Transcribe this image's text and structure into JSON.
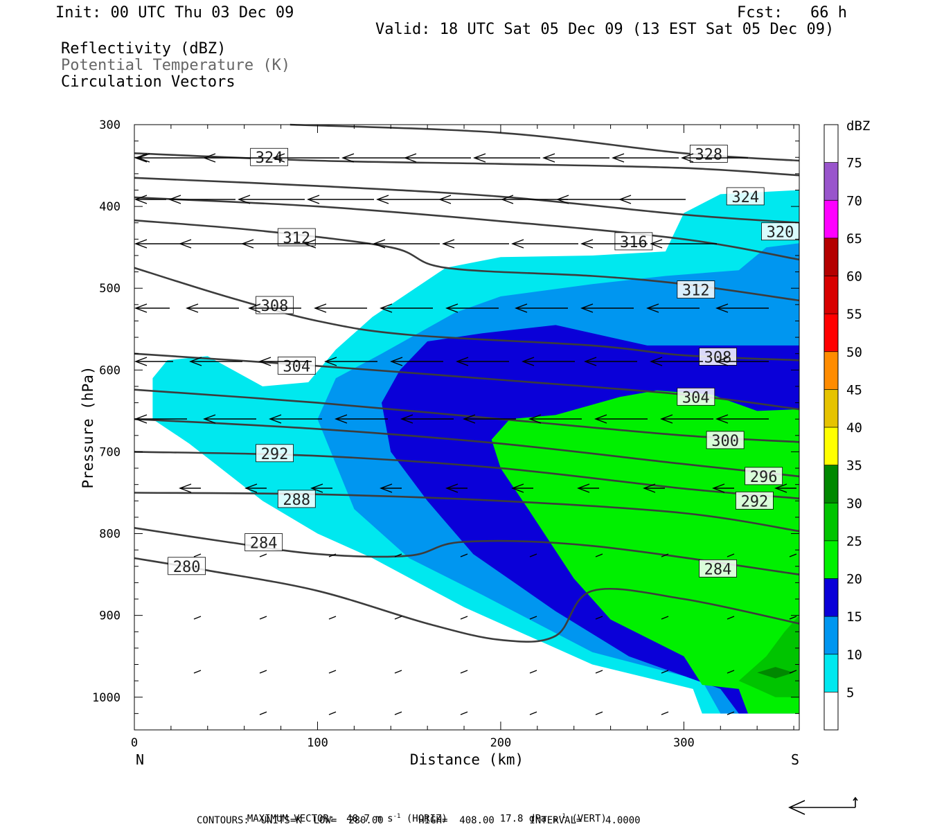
{
  "header": {
    "init": "Init: 00 UTC Thu 03 Dec 09",
    "fcst": "Fcst:   66 h",
    "valid": "Valid: 18 UTC Sat 05 Dec 09 (13 EST Sat 05 Dec 09)",
    "field1": "Reflectivity (dBZ)",
    "field2": "Potential Temperature (K)",
    "field3": "Circulation Vectors"
  },
  "footer": {
    "maxvec_label": "MAXIMUM VECTOR:",
    "maxvec_h": "48.7 m s",
    "maxvec_h_unit": "(HORIZ)",
    "maxvec_v": "17.8 dPa s",
    "maxvec_v_unit": "(VERT)",
    "exp": "-1",
    "contours": "CONTOURS:  UNITS=K  LOW=  280.00      HIGH=  408.00      INTERVAL=    4.0000"
  },
  "colors": {
    "c5": "#00e8ef",
    "c10": "#0096f0",
    "c15": "#0a00d8",
    "c20": "#00f000",
    "c25": "#00c400",
    "c30": "#008800",
    "contour": "#3c3c3c"
  },
  "chart_data": {
    "type": "heatmap",
    "xlabel": "Distance (km)",
    "ylabel": "Pressure (hPa)",
    "xlim": [
      0,
      363
    ],
    "ylim": [
      1040,
      300
    ],
    "x_ticks": [
      0,
      100,
      200,
      300
    ],
    "y_ticks": [
      300,
      400,
      500,
      600,
      700,
      800,
      900,
      1000
    ],
    "x_end_labels": {
      "left": "N",
      "right": "S"
    },
    "colorbar": {
      "title": "dBZ",
      "levels": [
        5,
        10,
        15,
        20,
        25,
        30,
        35,
        40,
        45,
        50,
        55,
        60,
        65,
        70,
        75
      ],
      "colors": [
        "#ffffff",
        "#00e8ef",
        "#0096f0",
        "#0a00d8",
        "#00f000",
        "#00c400",
        "#008800",
        "#ffff00",
        "#e6c300",
        "#ff8c00",
        "#ff0000",
        "#d80000",
        "#b40000",
        "#ff00ff",
        "#9955cc",
        "#ffffff"
      ]
    },
    "theta_contours": [
      {
        "value": 280,
        "points": [
          [
            0,
            830
          ],
          [
            40,
            845
          ],
          [
            100,
            870
          ],
          [
            160,
            910
          ],
          [
            200,
            930
          ],
          [
            230,
            925
          ],
          [
            250,
            870
          ],
          [
            300,
            880
          ],
          [
            363,
            910
          ]
        ],
        "labels": [
          [
            18,
            840
          ]
        ]
      },
      {
        "value": 284,
        "points": [
          [
            0,
            793
          ],
          [
            50,
            810
          ],
          [
            100,
            825
          ],
          [
            150,
            827
          ],
          [
            180,
            810
          ],
          [
            250,
            815
          ],
          [
            363,
            850
          ]
        ],
        "labels": [
          [
            60,
            811
          ],
          [
            308,
            843
          ]
        ]
      },
      {
        "value": 288,
        "points": [
          [
            0,
            750
          ],
          [
            100,
            752
          ],
          [
            200,
            760
          ],
          [
            300,
            775
          ],
          [
            363,
            797
          ]
        ],
        "labels": [
          [
            78,
            758
          ]
        ]
      },
      {
        "value": 292,
        "points": [
          [
            0,
            700
          ],
          [
            100,
            705
          ],
          [
            200,
            720
          ],
          [
            300,
            745
          ],
          [
            363,
            757
          ]
        ],
        "labels": [
          [
            66,
            702
          ],
          [
            328,
            760
          ]
        ]
      },
      {
        "value": 296,
        "points": [
          [
            0,
            660
          ],
          [
            100,
            672
          ],
          [
            200,
            690
          ],
          [
            300,
            715
          ],
          [
            363,
            730
          ]
        ],
        "labels": [
          [
            333,
            730
          ]
        ]
      },
      {
        "value": 300,
        "points": [
          [
            0,
            624
          ],
          [
            100,
            640
          ],
          [
            200,
            660
          ],
          [
            300,
            680
          ],
          [
            363,
            688
          ]
        ],
        "labels": [
          [
            312,
            686
          ]
        ]
      },
      {
        "value": 304,
        "points": [
          [
            0,
            580
          ],
          [
            100,
            595
          ],
          [
            200,
            612
          ],
          [
            300,
            630
          ],
          [
            363,
            648
          ]
        ],
        "labels": [
          [
            78,
            595
          ],
          [
            296,
            633
          ]
        ]
      },
      {
        "value": 308,
        "points": [
          [
            0,
            475
          ],
          [
            50,
            510
          ],
          [
            100,
            540
          ],
          [
            150,
            557
          ],
          [
            250,
            570
          ],
          [
            300,
            582
          ],
          [
            363,
            588
          ]
        ],
        "labels": [
          [
            66,
            521
          ],
          [
            308,
            584
          ]
        ]
      },
      {
        "value": 312,
        "points": [
          [
            0,
            417
          ],
          [
            70,
            430
          ],
          [
            140,
            450
          ],
          [
            170,
            475
          ],
          [
            250,
            485
          ],
          [
            300,
            495
          ],
          [
            363,
            515
          ]
        ],
        "labels": [
          [
            78,
            438
          ],
          [
            296,
            502
          ]
        ]
      },
      {
        "value": 316,
        "points": [
          [
            0,
            389
          ],
          [
            100,
            400
          ],
          [
            200,
            418
          ],
          [
            300,
            440
          ],
          [
            363,
            465
          ]
        ],
        "labels": [
          [
            262,
            443
          ]
        ]
      },
      {
        "value": 320,
        "points": [
          [
            0,
            365
          ],
          [
            100,
            375
          ],
          [
            200,
            388
          ],
          [
            300,
            410
          ],
          [
            363,
            420
          ]
        ],
        "labels": [
          [
            342,
            431
          ]
        ]
      },
      {
        "value": 324,
        "points": [
          [
            0,
            335
          ],
          [
            100,
            344
          ],
          [
            200,
            348
          ],
          [
            300,
            353
          ],
          [
            363,
            362
          ]
        ],
        "labels": [
          [
            63,
            340
          ],
          [
            323,
            388
          ]
        ]
      },
      {
        "value": 328,
        "points": [
          [
            85,
            300
          ],
          [
            200,
            310
          ],
          [
            300,
            335
          ],
          [
            363,
            344
          ]
        ],
        "labels": [
          [
            303,
            336
          ]
        ]
      }
    ],
    "reflectivity_regions": [
      {
        "dbz": 5,
        "points": [
          [
            10,
            610
          ],
          [
            18,
            588
          ],
          [
            40,
            583
          ],
          [
            70,
            620
          ],
          [
            95,
            615
          ],
          [
            110,
            575
          ],
          [
            130,
            535
          ],
          [
            170,
            475
          ],
          [
            200,
            462
          ],
          [
            250,
            460
          ],
          [
            290,
            455
          ],
          [
            300,
            408
          ],
          [
            320,
            385
          ],
          [
            363,
            380
          ],
          [
            363,
            1020
          ],
          [
            310,
            1020
          ],
          [
            305,
            990
          ],
          [
            250,
            960
          ],
          [
            180,
            890
          ],
          [
            130,
            830
          ],
          [
            100,
            800
          ],
          [
            70,
            760
          ],
          [
            30,
            690
          ],
          [
            10,
            660
          ]
        ]
      },
      {
        "dbz": 10,
        "points": [
          [
            100,
            660
          ],
          [
            110,
            610
          ],
          [
            135,
            580
          ],
          [
            175,
            530
          ],
          [
            200,
            510
          ],
          [
            250,
            495
          ],
          [
            290,
            485
          ],
          [
            330,
            478
          ],
          [
            345,
            450
          ],
          [
            363,
            445
          ],
          [
            363,
            1020
          ],
          [
            320,
            1020
          ],
          [
            310,
            980
          ],
          [
            250,
            945
          ],
          [
            190,
            875
          ],
          [
            150,
            830
          ],
          [
            120,
            770
          ]
        ]
      },
      {
        "dbz": 15,
        "points": [
          [
            135,
            640
          ],
          [
            145,
            600
          ],
          [
            160,
            565
          ],
          [
            190,
            555
          ],
          [
            230,
            545
          ],
          [
            280,
            570
          ],
          [
            363,
            570
          ],
          [
            363,
            1020
          ],
          [
            330,
            1020
          ],
          [
            320,
            990
          ],
          [
            270,
            950
          ],
          [
            230,
            895
          ],
          [
            185,
            825
          ],
          [
            160,
            760
          ],
          [
            140,
            700
          ]
        ]
      },
      {
        "dbz": 20,
        "points": [
          [
            195,
            685
          ],
          [
            205,
            660
          ],
          [
            230,
            655
          ],
          [
            265,
            633
          ],
          [
            285,
            625
          ],
          [
            315,
            630
          ],
          [
            340,
            650
          ],
          [
            363,
            648
          ],
          [
            363,
            1020
          ],
          [
            335,
            1020
          ],
          [
            330,
            990
          ],
          [
            310,
            985
          ],
          [
            300,
            950
          ],
          [
            260,
            905
          ],
          [
            240,
            855
          ],
          [
            215,
            770
          ],
          [
            200,
            720
          ]
        ]
      },
      {
        "dbz": 25,
        "points": [
          [
            330,
            980
          ],
          [
            345,
            950
          ],
          [
            355,
            920
          ],
          [
            363,
            900
          ],
          [
            363,
            1000
          ],
          [
            350,
            1000
          ],
          [
            340,
            990
          ]
        ]
      },
      {
        "dbz": 30,
        "points": [
          [
            340,
            970
          ],
          [
            350,
            963
          ],
          [
            360,
            970
          ],
          [
            350,
            977
          ]
        ]
      }
    ]
  }
}
